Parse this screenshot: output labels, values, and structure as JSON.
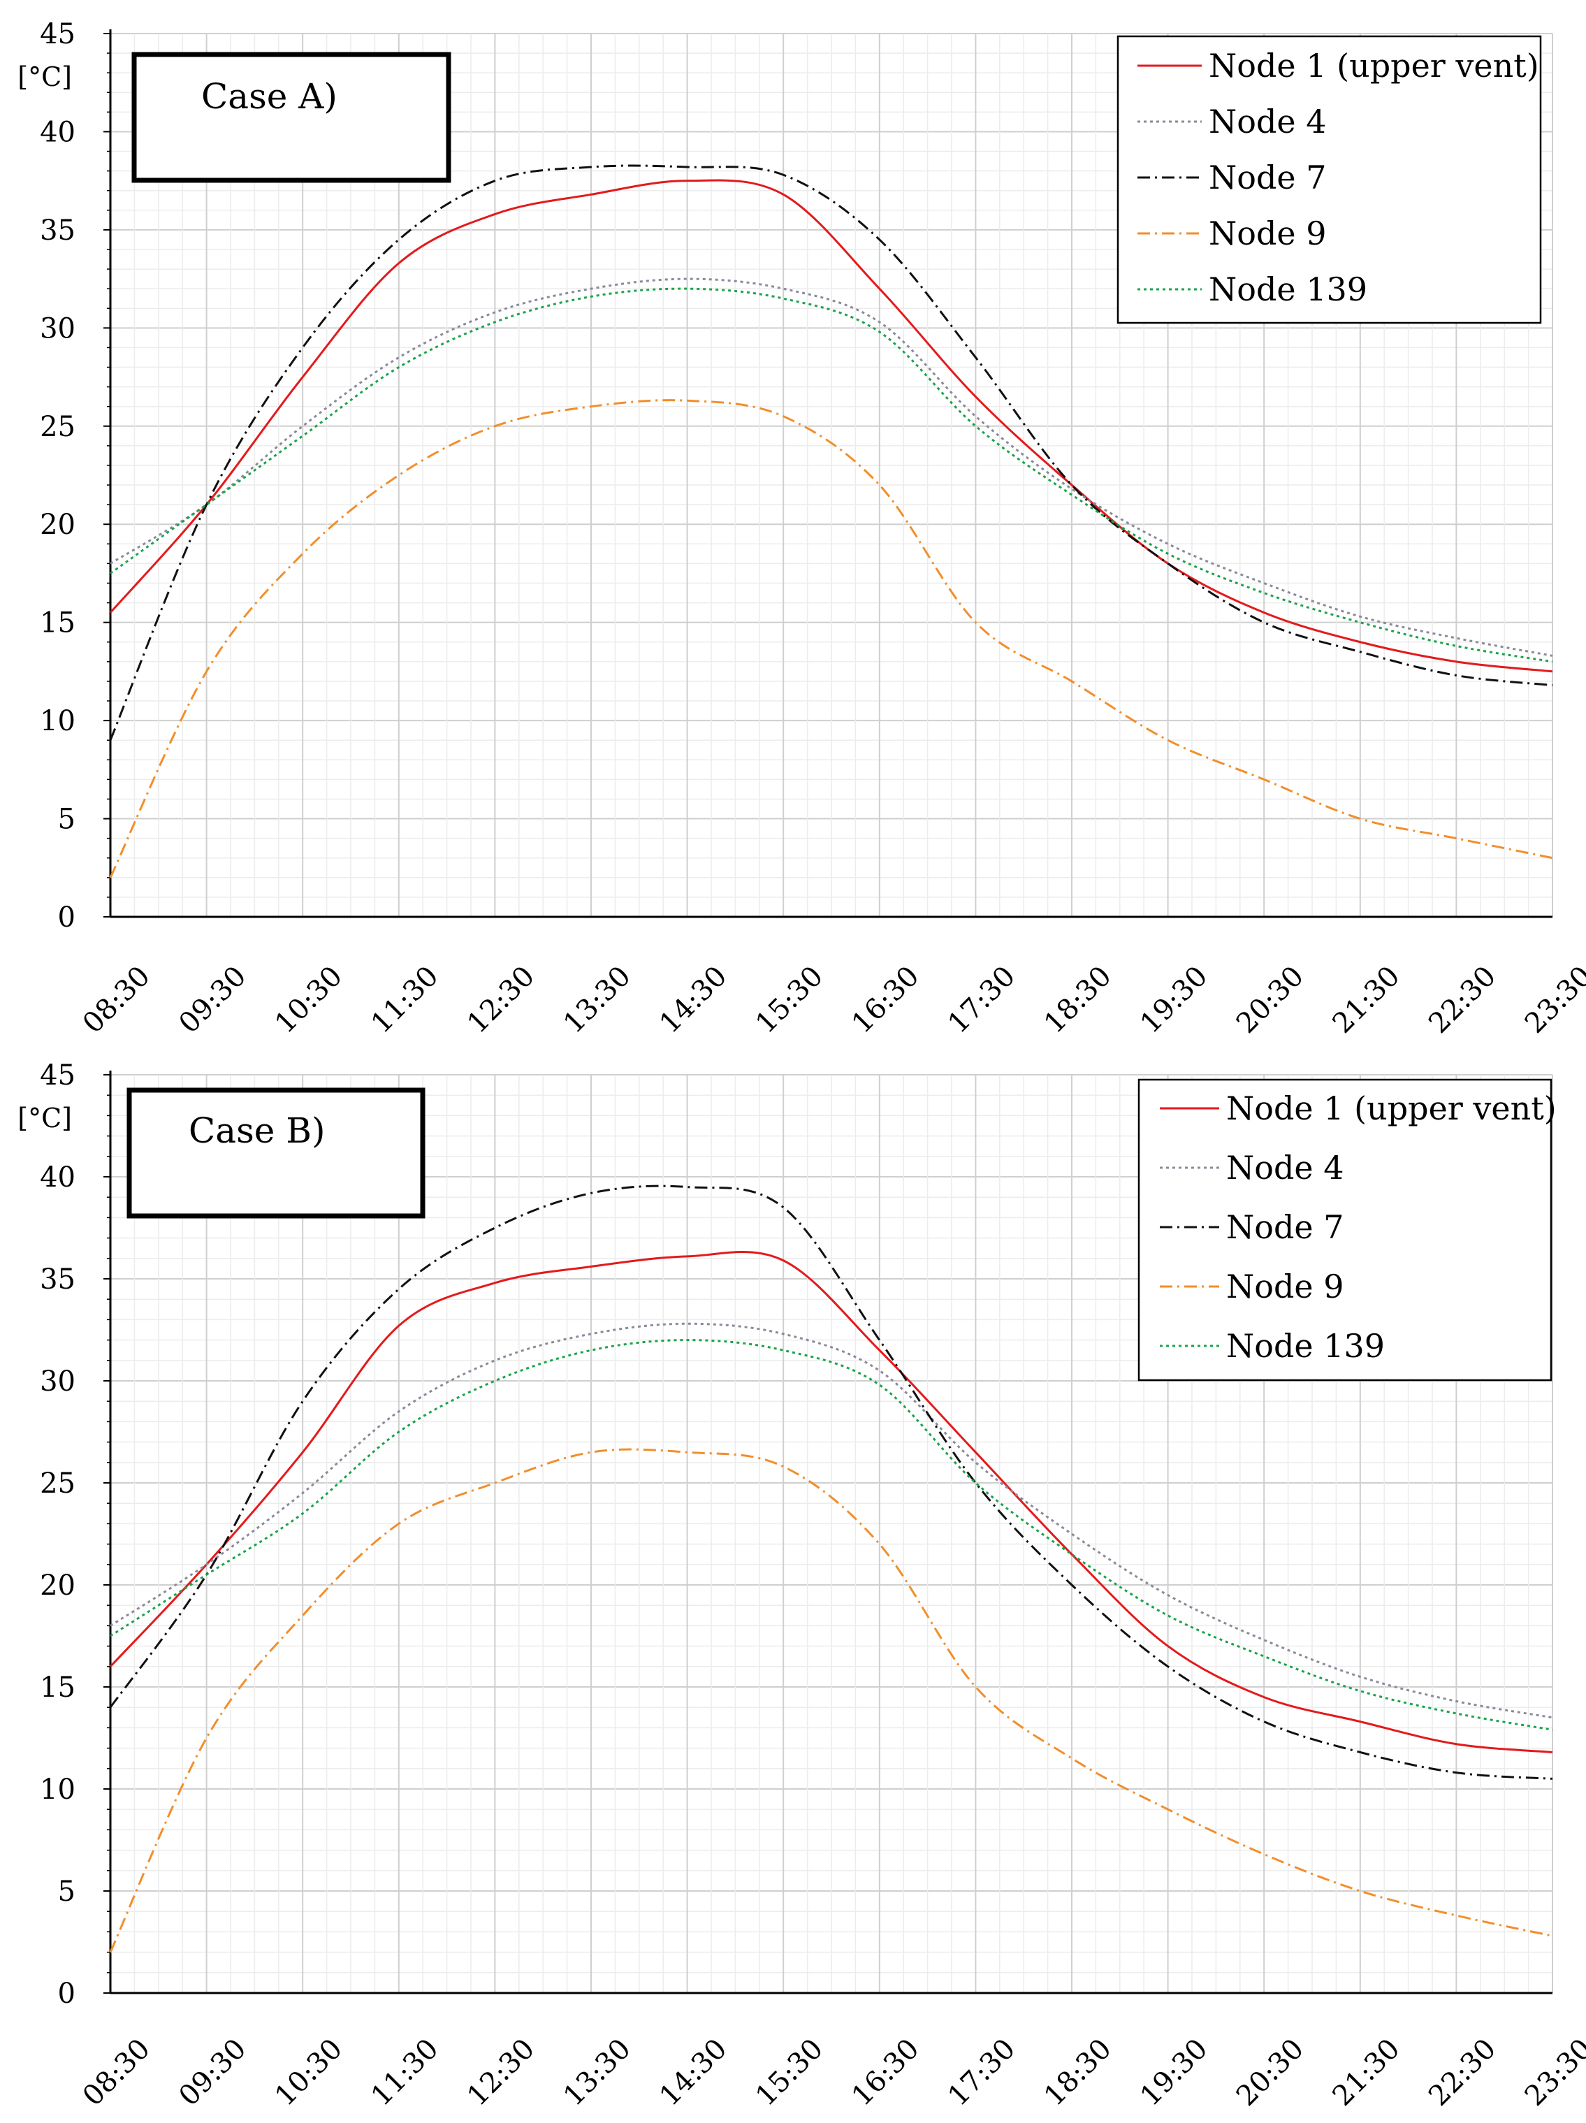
{
  "chart_data": [
    {
      "type": "line",
      "title": "Case A)",
      "ylabel": "[°C]",
      "xlabel": "",
      "ylim": [
        0,
        45
      ],
      "yticks": [
        0,
        5,
        10,
        15,
        20,
        25,
        30,
        35,
        40,
        45
      ],
      "grid": true,
      "legend_position": "top-right",
      "categories": [
        "08:30",
        "09:30",
        "10:30",
        "11:30",
        "12:30",
        "13:30",
        "14:30",
        "15:30",
        "16:30",
        "17:30",
        "18:30",
        "19:30",
        "20:30",
        "21:30",
        "22:30",
        "23:30"
      ],
      "series": [
        {
          "name": "Node 1 (upper vent)",
          "color": "#e31a1c",
          "dash": "solid",
          "values": [
            15.5,
            21.0,
            27.5,
            33.3,
            35.8,
            36.8,
            37.5,
            36.8,
            32.0,
            26.5,
            22.0,
            18.0,
            15.5,
            14.0,
            13.0,
            12.5
          ]
        },
        {
          "name": "Node 4",
          "color": "#8a8a9a",
          "dash": "dot",
          "values": [
            18.0,
            21.0,
            25.0,
            28.5,
            30.8,
            32.0,
            32.5,
            32.0,
            30.3,
            25.5,
            21.8,
            19.0,
            17.0,
            15.3,
            14.2,
            13.3
          ]
        },
        {
          "name": "Node 7",
          "color": "#111111",
          "dash": "dashdot",
          "values": [
            9.0,
            21.0,
            29.0,
            34.5,
            37.5,
            38.2,
            38.2,
            37.8,
            34.5,
            28.5,
            22.0,
            18.0,
            15.0,
            13.5,
            12.3,
            11.8
          ]
        },
        {
          "name": "Node 9",
          "color": "#f28e2b",
          "dash": "dashdot",
          "values": [
            2.0,
            12.5,
            18.5,
            22.5,
            25.0,
            26.0,
            26.3,
            25.5,
            22.0,
            15.0,
            12.0,
            9.0,
            7.0,
            5.0,
            4.0,
            3.0
          ]
        },
        {
          "name": "Node 139",
          "color": "#1aa34a",
          "dash": "dot",
          "values": [
            17.5,
            21.0,
            24.5,
            28.0,
            30.3,
            31.6,
            32.0,
            31.5,
            29.8,
            25.0,
            21.5,
            18.5,
            16.5,
            15.0,
            13.8,
            13.0
          ]
        }
      ]
    },
    {
      "type": "line",
      "title": "Case B)",
      "ylabel": "[°C]",
      "xlabel": "",
      "ylim": [
        0,
        45
      ],
      "yticks": [
        0,
        5,
        10,
        15,
        20,
        25,
        30,
        35,
        40,
        45
      ],
      "grid": true,
      "legend_position": "top-right",
      "categories": [
        "08:30",
        "09:30",
        "10:30",
        "11:30",
        "12:30",
        "13:30",
        "14:30",
        "15:30",
        "16:30",
        "17:30",
        "18:30",
        "19:30",
        "20:30",
        "21:30",
        "22:30",
        "23:30"
      ],
      "series": [
        {
          "name": "Node 1 (upper vent)",
          "color": "#e31a1c",
          "dash": "solid",
          "values": [
            16.0,
            21.0,
            26.5,
            32.7,
            34.8,
            35.6,
            36.1,
            35.9,
            31.5,
            26.5,
            21.5,
            17.0,
            14.5,
            13.3,
            12.2,
            11.8
          ]
        },
        {
          "name": "Node 4",
          "color": "#8a8a9a",
          "dash": "dot",
          "values": [
            18.0,
            21.0,
            24.5,
            28.5,
            31.0,
            32.3,
            32.8,
            32.3,
            30.5,
            26.0,
            22.5,
            19.5,
            17.3,
            15.5,
            14.3,
            13.5
          ]
        },
        {
          "name": "Node 7",
          "color": "#111111",
          "dash": "dashdot",
          "values": [
            14.0,
            20.5,
            29.0,
            34.5,
            37.5,
            39.2,
            39.5,
            38.5,
            32.0,
            25.0,
            20.0,
            16.0,
            13.3,
            11.8,
            10.8,
            10.5
          ]
        },
        {
          "name": "Node 9",
          "color": "#f28e2b",
          "dash": "dashdot",
          "values": [
            2.0,
            12.5,
            18.5,
            23.0,
            25.0,
            26.5,
            26.5,
            25.8,
            22.0,
            15.0,
            11.5,
            9.0,
            6.8,
            5.0,
            3.8,
            2.8
          ]
        },
        {
          "name": "Node 139",
          "color": "#1aa34a",
          "dash": "dot",
          "values": [
            17.5,
            20.5,
            23.5,
            27.5,
            30.0,
            31.5,
            32.0,
            31.5,
            29.8,
            25.0,
            21.5,
            18.5,
            16.5,
            14.8,
            13.7,
            12.9
          ]
        }
      ]
    }
  ]
}
